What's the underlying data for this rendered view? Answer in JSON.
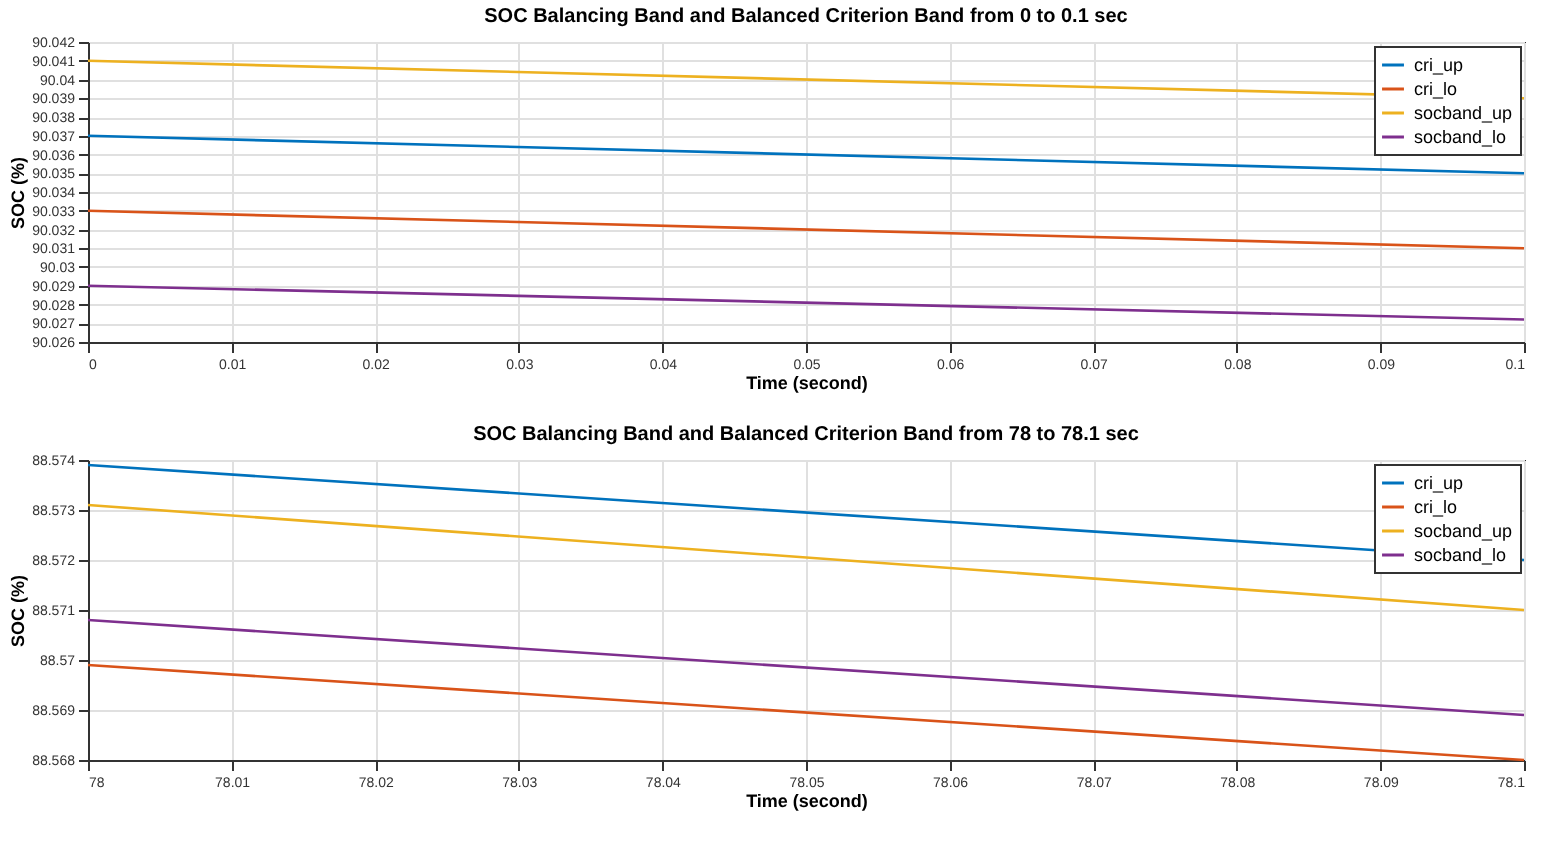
{
  "chart_data": [
    {
      "type": "line",
      "title": "SOC Balancing Band and Balanced Criterion Band from 0 to 0.1 sec",
      "xlabel": "Time (second)",
      "ylabel": "SOC (%)",
      "x": [
        0,
        0.1
      ],
      "series": [
        {
          "name": "cri_up",
          "color": "#0072bd",
          "values": [
            90.037,
            90.035
          ]
        },
        {
          "name": "cri_lo",
          "color": "#d95319",
          "values": [
            90.033,
            90.031
          ]
        },
        {
          "name": "socband_up",
          "color": "#edb120",
          "values": [
            90.041,
            90.039
          ]
        },
        {
          "name": "socband_lo",
          "color": "#7e2f8e",
          "values": [
            90.029,
            90.0272
          ]
        }
      ],
      "xlim": [
        0,
        0.1
      ],
      "xticks": [
        0,
        0.01,
        0.02,
        0.03,
        0.04,
        0.05,
        0.06,
        0.07,
        0.08,
        0.09,
        0.1
      ],
      "ylim": [
        90.026,
        90.042
      ],
      "yticks": [
        90.026,
        90.027,
        90.028,
        90.029,
        90.03,
        90.031,
        90.032,
        90.033,
        90.034,
        90.035,
        90.036,
        90.037,
        90.038,
        90.039,
        90.04,
        90.041,
        90.042
      ],
      "grid": true,
      "legend": "top right"
    },
    {
      "type": "line",
      "title": "SOC Balancing Band and Balanced Criterion Band from 78 to 78.1 sec",
      "xlabel": "Time (second)",
      "ylabel": "SOC (%)",
      "x": [
        78,
        78.1
      ],
      "series": [
        {
          "name": "cri_up",
          "color": "#0072bd",
          "values": [
            88.5739,
            88.572
          ]
        },
        {
          "name": "cri_lo",
          "color": "#d95319",
          "values": [
            88.5699,
            88.568
          ]
        },
        {
          "name": "socband_up",
          "color": "#edb120",
          "values": [
            88.5731,
            88.571
          ]
        },
        {
          "name": "socband_lo",
          "color": "#7e2f8e",
          "values": [
            88.5708,
            88.5689
          ]
        }
      ],
      "xlim": [
        78,
        78.1
      ],
      "xticks": [
        78,
        78.01,
        78.02,
        78.03,
        78.04,
        78.05,
        78.06,
        78.07,
        78.08,
        78.09,
        78.1
      ],
      "ylim": [
        88.568,
        88.574
      ],
      "yticks": [
        88.568,
        88.569,
        88.57,
        88.571,
        88.572,
        88.573,
        88.574
      ],
      "grid": true,
      "legend": "top right"
    }
  ]
}
